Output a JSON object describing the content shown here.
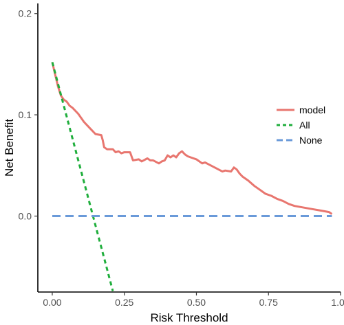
{
  "chart_data": {
    "type": "line",
    "title": "",
    "xlabel": "Risk Threshold",
    "ylabel": "Net Benefit",
    "xlim": [
      -0.05,
      1.0
    ],
    "ylim": [
      -0.075,
      0.21
    ],
    "x_ticks": [
      0.0,
      0.25,
      0.5,
      0.75,
      1.0
    ],
    "x_tick_labels": [
      "0.00",
      "0.25",
      "0.50",
      "0.75",
      "1.00"
    ],
    "y_ticks": [
      0.0,
      0.1,
      0.2
    ],
    "y_tick_labels": [
      "0.0",
      "0.1",
      "0.2"
    ],
    "grid": false,
    "legend_position": "right",
    "series": [
      {
        "name": "model",
        "color": "#E8766F",
        "dash": "solid",
        "x": [
          0.0,
          0.01,
          0.02,
          0.03,
          0.04,
          0.05,
          0.06,
          0.07,
          0.09,
          0.11,
          0.13,
          0.15,
          0.17,
          0.175,
          0.18,
          0.19,
          0.21,
          0.22,
          0.23,
          0.24,
          0.25,
          0.27,
          0.28,
          0.3,
          0.31,
          0.33,
          0.34,
          0.35,
          0.37,
          0.38,
          0.39,
          0.4,
          0.41,
          0.42,
          0.43,
          0.44,
          0.45,
          0.46,
          0.47,
          0.48,
          0.5,
          0.52,
          0.53,
          0.55,
          0.57,
          0.59,
          0.6,
          0.62,
          0.63,
          0.64,
          0.65,
          0.66,
          0.68,
          0.7,
          0.72,
          0.74,
          0.76,
          0.78,
          0.8,
          0.82,
          0.84,
          0.86,
          0.88,
          0.9,
          0.92,
          0.94,
          0.96,
          0.97
        ],
        "y": [
          0.152,
          0.14,
          0.128,
          0.119,
          0.115,
          0.113,
          0.109,
          0.107,
          0.101,
          0.093,
          0.087,
          0.081,
          0.08,
          0.075,
          0.068,
          0.066,
          0.066,
          0.063,
          0.064,
          0.062,
          0.063,
          0.063,
          0.055,
          0.056,
          0.054,
          0.057,
          0.055,
          0.055,
          0.052,
          0.054,
          0.055,
          0.06,
          0.058,
          0.06,
          0.058,
          0.062,
          0.064,
          0.061,
          0.059,
          0.058,
          0.056,
          0.052,
          0.053,
          0.05,
          0.047,
          0.044,
          0.045,
          0.044,
          0.048,
          0.046,
          0.042,
          0.039,
          0.035,
          0.03,
          0.026,
          0.022,
          0.02,
          0.017,
          0.015,
          0.012,
          0.01,
          0.009,
          0.008,
          0.007,
          0.006,
          0.005,
          0.004,
          0.002
        ]
      },
      {
        "name": "All",
        "color": "#1FAE3C",
        "dash": "dashed",
        "x": [
          0.0,
          0.21
        ],
        "y": [
          0.152,
          -0.074
        ]
      },
      {
        "name": "None",
        "color": "#6A9AD9",
        "dash": "longdash",
        "x": [
          0.0,
          0.97
        ],
        "y": [
          0.0,
          0.0
        ]
      }
    ]
  }
}
